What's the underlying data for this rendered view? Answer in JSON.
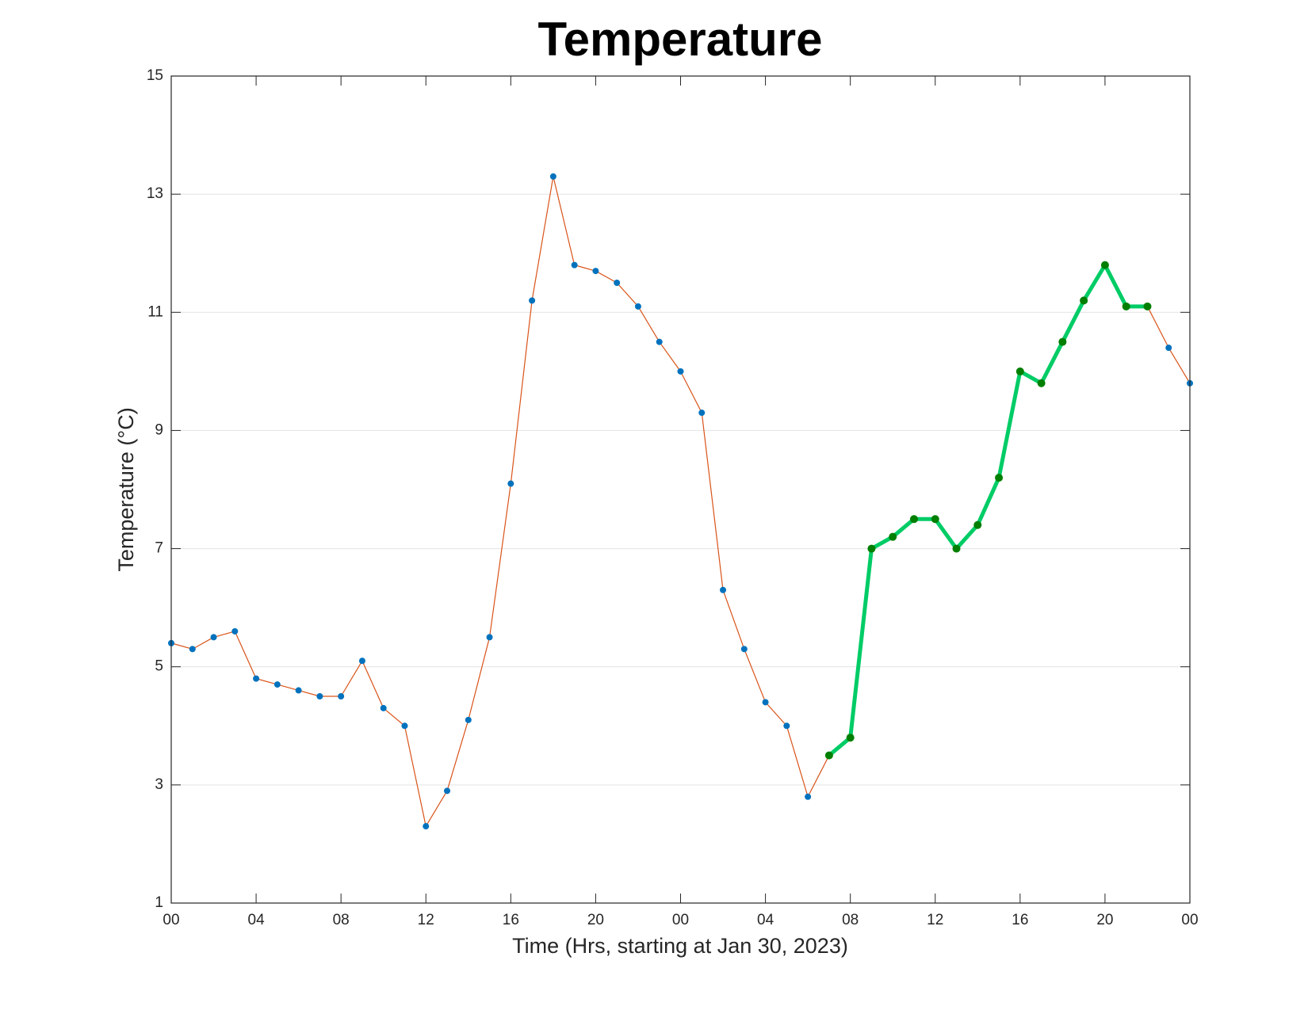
{
  "chart_data": {
    "type": "line",
    "title": "Temperature",
    "xlabel": "Time (Hrs, starting at Jan 30, 2023)",
    "ylabel": "Temperature (°C)",
    "x": [
      0,
      1,
      2,
      3,
      4,
      5,
      6,
      7,
      8,
      9,
      10,
      11,
      12,
      13,
      14,
      15,
      16,
      17,
      18,
      19,
      20,
      21,
      22,
      23,
      24,
      25,
      26,
      27,
      28,
      29,
      30,
      31,
      32,
      33,
      34,
      35,
      36,
      37,
      38,
      39,
      40,
      41,
      42,
      43,
      44,
      45,
      46,
      47,
      48
    ],
    "series": [
      {
        "color": "#d95319",
        "marker_color": "#0072bd",
        "values": [
          5.4,
          5.3,
          5.5,
          5.6,
          4.8,
          4.7,
          4.6,
          4.5,
          4.5,
          5.1,
          4.3,
          4.0,
          2.3,
          2.9,
          4.1,
          5.5,
          8.1,
          11.2,
          13.3,
          11.8,
          11.7,
          11.5,
          11.1,
          10.5,
          10.0,
          9.3,
          6.3,
          5.3,
          4.4,
          4.0,
          2.8,
          3.5,
          3.8,
          7.0,
          7.2,
          7.5,
          7.5,
          7.0,
          7.4,
          8.2,
          10.0,
          9.8,
          10.5,
          11.2,
          11.8,
          11.1,
          11.1,
          10.4,
          9.8
        ]
      },
      {
        "color": "#00cc66",
        "marker_color": "#007f00",
        "values": [
          null,
          null,
          null,
          null,
          null,
          null,
          null,
          null,
          null,
          null,
          null,
          null,
          null,
          null,
          null,
          null,
          null,
          null,
          null,
          null,
          null,
          null,
          null,
          null,
          null,
          null,
          null,
          null,
          null,
          null,
          null,
          3.5,
          3.8,
          7.0,
          7.2,
          7.5,
          7.5,
          7.0,
          7.4,
          8.2,
          10.0,
          9.8,
          10.5,
          11.2,
          11.8,
          11.1,
          11.1,
          null,
          null
        ]
      }
    ],
    "xlim": [
      0,
      48
    ],
    "xticks": [
      {
        "value": 0,
        "label": "00"
      },
      {
        "value": 4,
        "label": "04"
      },
      {
        "value": 8,
        "label": "08"
      },
      {
        "value": 12,
        "label": "12"
      },
      {
        "value": 16,
        "label": "16"
      },
      {
        "value": 20,
        "label": "20"
      },
      {
        "value": 24,
        "label": "00"
      },
      {
        "value": 28,
        "label": "04"
      },
      {
        "value": 32,
        "label": "08"
      },
      {
        "value": 36,
        "label": "12"
      },
      {
        "value": 40,
        "label": "16"
      },
      {
        "value": 44,
        "label": "20"
      },
      {
        "value": 48,
        "label": "00"
      }
    ],
    "ylim": [
      1,
      15
    ],
    "yticks": [
      1,
      3,
      5,
      7,
      9,
      11,
      13,
      15
    ],
    "grid": true
  }
}
